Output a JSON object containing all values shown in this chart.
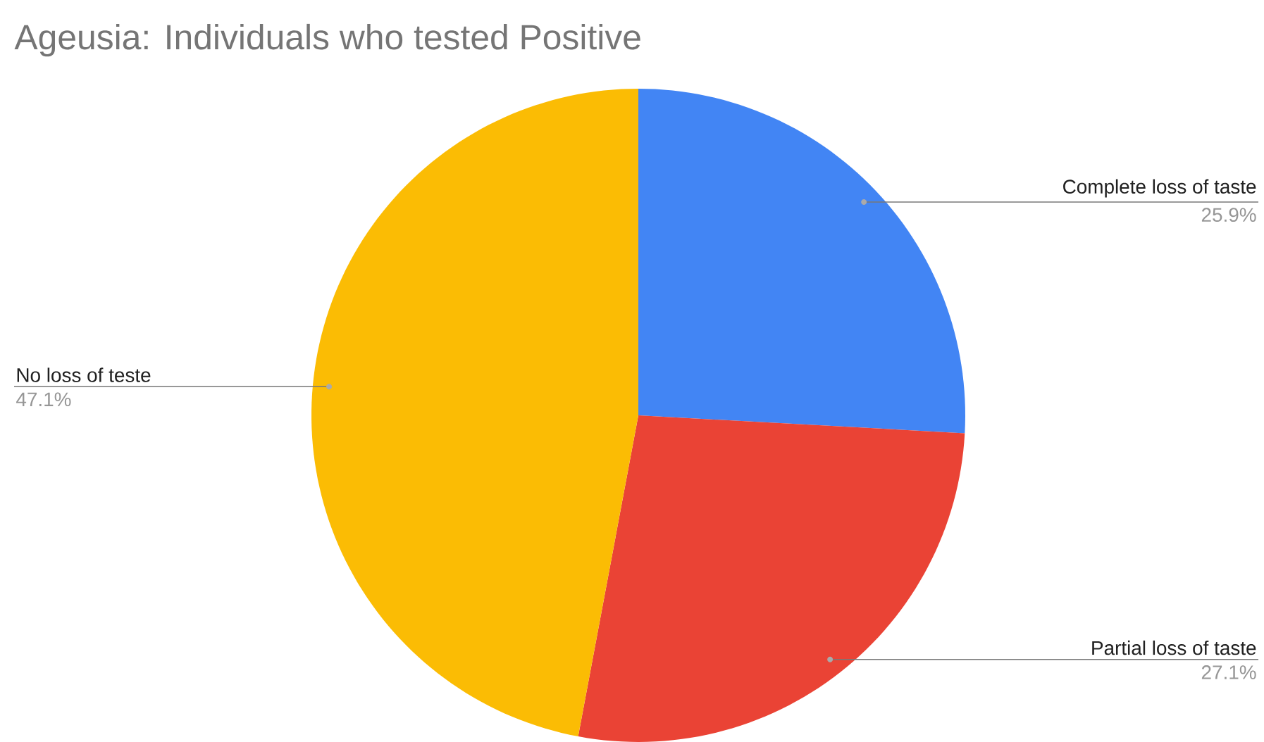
{
  "chart_data": {
    "type": "pie",
    "title": "Ageusia:  Individuals who tested Positive",
    "categories": [
      "Complete loss of taste",
      "Partial loss of taste",
      "No loss of teste"
    ],
    "values": [
      25.9,
      27.1,
      47.1
    ],
    "value_labels": [
      "25.9%",
      "27.1%",
      "47.1%"
    ],
    "colors": [
      "#4285f4",
      "#ea4335",
      "#fbbc04"
    ]
  }
}
